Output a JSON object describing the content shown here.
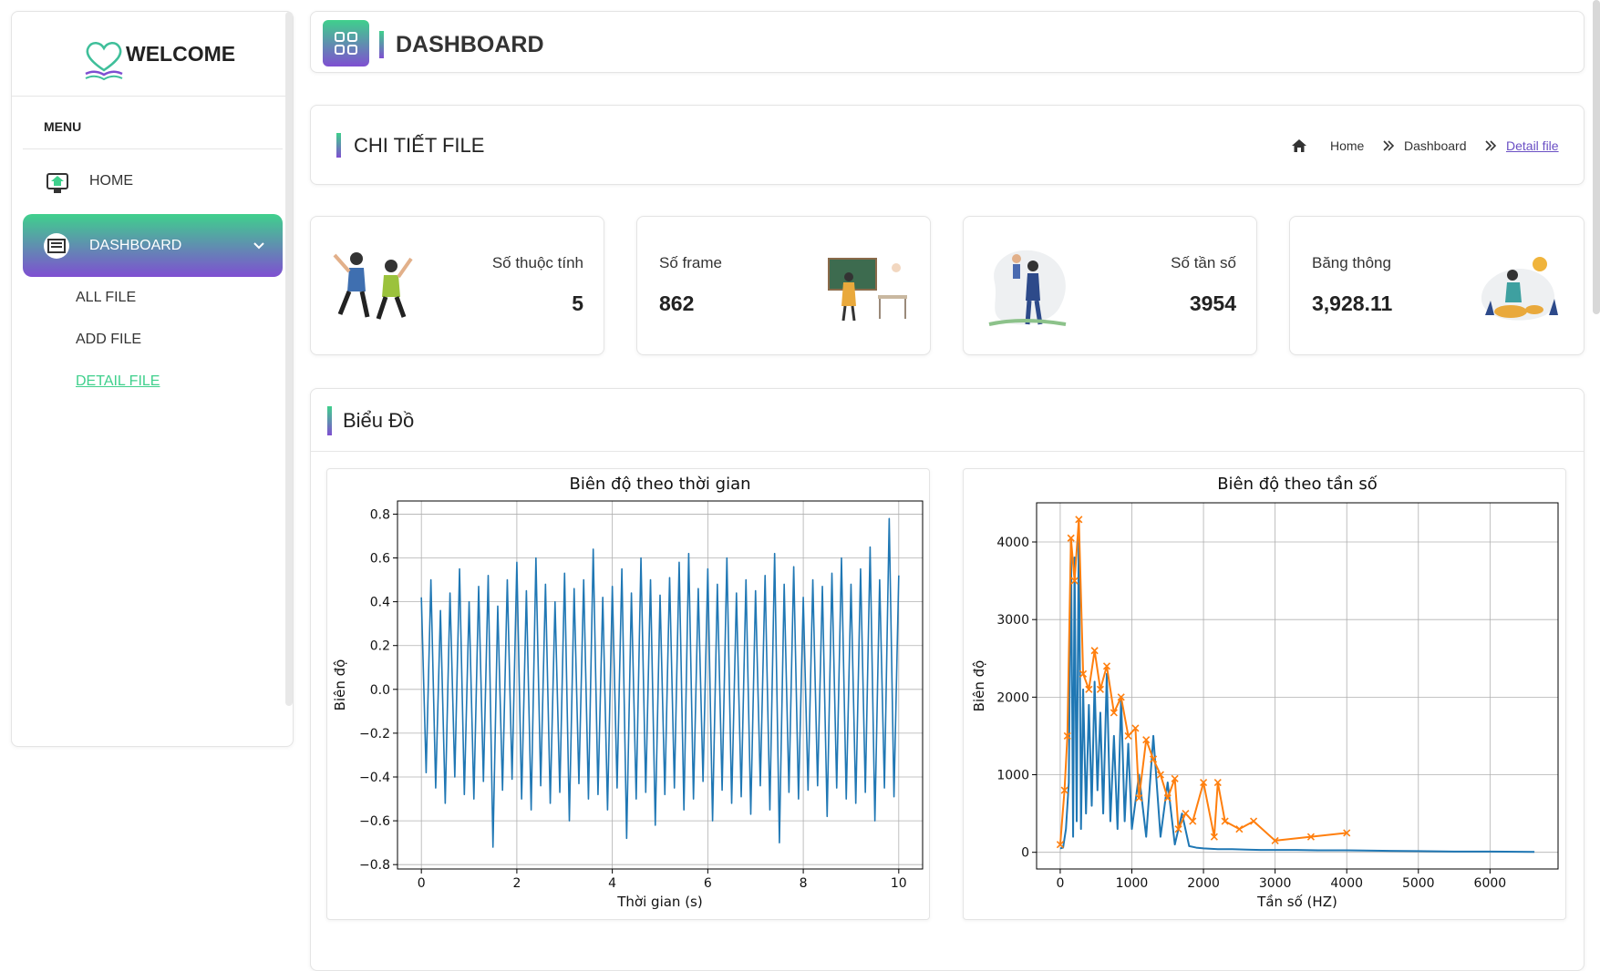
{
  "sidebar": {
    "title": "WELCOME",
    "menu_label": "MENU",
    "items": [
      {
        "label": "HOME"
      },
      {
        "label": "DASHBOARD",
        "children": [
          {
            "label": "ALL FILE"
          },
          {
            "label": "ADD FILE"
          },
          {
            "label": "DETAIL FILE"
          }
        ]
      }
    ]
  },
  "header": {
    "title": "DASHBOARD"
  },
  "page_header": {
    "title": "CHI TIẾT FILE",
    "breadcrumb": [
      "Home",
      "Dashboard",
      "Detail file"
    ]
  },
  "stats": [
    {
      "label": "Số thuộc tính",
      "value": 5
    },
    {
      "label": "Số frame",
      "value": 862
    },
    {
      "label": "Số tần số",
      "value": 3954
    },
    {
      "label": "Băng thông",
      "value": "3,928.11"
    }
  ],
  "charts_card": {
    "title": "Biểu Đồ"
  },
  "chart_data": [
    {
      "type": "line",
      "title": "Biên độ theo thời gian",
      "x_label": "Thời gian (s)",
      "y_label": "Biên độ",
      "xlim": [
        -0.5,
        10.5
      ],
      "ylim": [
        -0.82,
        0.86
      ],
      "xticks": [
        0,
        2,
        4,
        6,
        8,
        10
      ],
      "yticks": [
        {
          "value": -0.8,
          "label": "−0.8"
        },
        {
          "value": -0.6,
          "label": "−0.6"
        },
        {
          "value": -0.4,
          "label": "−0.4"
        },
        {
          "value": -0.2,
          "label": "−0.2"
        },
        {
          "value": 0,
          "label": "0.0"
        },
        0.2,
        0.4,
        0.6,
        0.8
      ],
      "grid": true,
      "x": [
        0,
        0.1,
        0.2,
        0.3,
        0.4,
        0.5,
        0.6,
        0.7,
        0.8,
        0.9,
        1,
        1.1,
        1.2,
        1.3,
        1.4,
        1.5,
        1.6,
        1.7,
        1.8,
        1.9,
        2,
        2.1,
        2.2,
        2.3,
        2.4,
        2.5,
        2.6,
        2.7,
        2.8,
        2.9,
        3,
        3.1,
        3.2,
        3.3,
        3.4,
        3.5,
        3.6,
        3.7,
        3.8,
        3.9,
        4,
        4.1,
        4.2,
        4.3,
        4.4,
        4.5,
        4.6,
        4.7,
        4.8,
        4.9,
        5,
        5.1,
        5.2,
        5.3,
        5.4,
        5.5,
        5.6,
        5.7,
        5.8,
        5.9,
        6,
        6.1,
        6.2,
        6.3,
        6.4,
        6.5,
        6.6,
        6.7,
        6.8,
        6.9,
        7,
        7.1,
        7.2,
        7.3,
        7.4,
        7.5,
        7.6,
        7.7,
        7.8,
        7.9,
        8,
        8.1,
        8.2,
        8.3,
        8.4,
        8.5,
        8.6,
        8.7,
        8.8,
        8.9,
        9,
        9.1,
        9.2,
        9.3,
        9.4,
        9.5,
        9.6,
        9.7,
        9.8,
        9.9,
        10
      ],
      "series": [
        {
          "color": "#1f77b4",
          "values": [
            0.42,
            -0.38,
            0.5,
            -0.45,
            0.36,
            -0.52,
            0.44,
            -0.4,
            0.55,
            -0.48,
            0.4,
            -0.5,
            0.47,
            -0.42,
            0.52,
            -0.72,
            0.38,
            -0.46,
            0.5,
            -0.41,
            0.58,
            -0.5,
            0.45,
            -0.55,
            0.6,
            -0.44,
            0.48,
            -0.52,
            0.4,
            -0.47,
            0.53,
            -0.6,
            0.46,
            -0.43,
            0.5,
            -0.5,
            0.64,
            -0.48,
            0.42,
            -0.55,
            0.47,
            -0.45,
            0.55,
            -0.68,
            0.44,
            -0.5,
            0.6,
            -0.47,
            0.5,
            -0.62,
            0.43,
            -0.48,
            0.51,
            -0.45,
            0.58,
            -0.55,
            0.62,
            -0.5,
            0.46,
            -0.42,
            0.55,
            -0.6,
            0.48,
            -0.46,
            0.6,
            -0.52,
            0.44,
            -0.49,
            0.5,
            -0.57,
            0.45,
            -0.44,
            0.52,
            -0.55,
            0.62,
            -0.7,
            0.48,
            -0.47,
            0.56,
            -0.5,
            0.42,
            -0.46,
            0.5,
            -0.44,
            0.47,
            -0.58,
            0.53,
            -0.45,
            0.6,
            -0.5,
            0.48,
            -0.52,
            0.55,
            -0.47,
            0.65,
            -0.6,
            0.5,
            -0.45,
            0.78,
            -0.49,
            0.52
          ]
        }
      ]
    },
    {
      "type": "line",
      "title": "Biên độ theo tần số",
      "x_label": "Tần số (HZ)",
      "y_label": "Biên độ",
      "xlim": [
        -330,
        6950
      ],
      "ylim": [
        -215,
        4505
      ],
      "xticks": [
        0,
        1000,
        2000,
        3000,
        4000,
        5000,
        6000
      ],
      "yticks": [
        0,
        1000,
        2000,
        3000,
        4000
      ],
      "grid": true,
      "series": [
        {
          "color": "#1f77b4",
          "marker": "none",
          "x": [
            0,
            40,
            80,
            120,
            150,
            180,
            200,
            230,
            260,
            290,
            320,
            360,
            400,
            440,
            480,
            520,
            560,
            600,
            650,
            700,
            750,
            800,
            850,
            900,
            950,
            1000,
            1100,
            1200,
            1300,
            1400,
            1500,
            1600,
            1700,
            1800,
            1900,
            2000,
            2200,
            2400,
            2600,
            2800,
            3000,
            3300,
            3600,
            4000,
            4500,
            5000,
            5500,
            6000,
            6620
          ],
          "values": [
            50,
            60,
            300,
            900,
            4050,
            200,
            3800,
            400,
            4290,
            300,
            2100,
            500,
            1900,
            600,
            2200,
            800,
            1800,
            500,
            2300,
            400,
            1500,
            300,
            2000,
            400,
            1400,
            300,
            1000,
            200,
            1500,
            200,
            900,
            100,
            500,
            80,
            60,
            50,
            40,
            40,
            35,
            30,
            30,
            30,
            25,
            25,
            20,
            15,
            10,
            10,
            5
          ]
        },
        {
          "color": "#ff7f0e",
          "marker": "x",
          "x": [
            0,
            60,
            100,
            150,
            200,
            260,
            320,
            400,
            480,
            560,
            650,
            750,
            850,
            950,
            1050,
            1100,
            1200,
            1300,
            1400,
            1500,
            1600,
            1650,
            1750,
            1850,
            2000,
            2150,
            2200,
            2300,
            2500,
            2700,
            3000,
            3500,
            4000
          ],
          "values": [
            100,
            800,
            1500,
            4050,
            3500,
            4290,
            2300,
            2100,
            2600,
            2100,
            2400,
            1800,
            2000,
            1500,
            1600,
            700,
            1450,
            1200,
            1000,
            700,
            950,
            300,
            500,
            400,
            900,
            200,
            900,
            400,
            300,
            400,
            150,
            200,
            250
          ]
        }
      ]
    }
  ]
}
